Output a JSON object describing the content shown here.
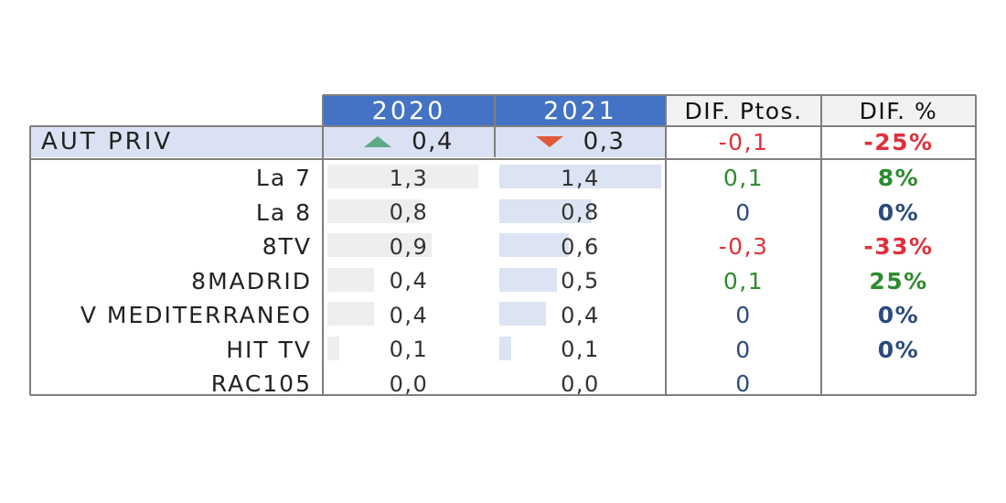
{
  "table": {
    "header": {
      "col2020": "2020",
      "col2021": "2021",
      "dif_pts": "DIF. Ptos.",
      "dif_pct": "DIF. %"
    },
    "total": {
      "label": "AUT PRIV",
      "v2020": "0,4",
      "v2021": "0,3",
      "dif_pts": "-0,1",
      "dif_pct": "-25%",
      "icon2020": "triangle-up-icon",
      "icon2021": "triangle-down-icon"
    },
    "rows": [
      {
        "label": "La 7",
        "v2020": "1,3",
        "v2021": "1,4",
        "dif_pts": "0,1",
        "dif_pct": "8%"
      },
      {
        "label": "La 8",
        "v2020": "0,8",
        "v2021": "0,8",
        "dif_pts": "0",
        "dif_pct": "0%"
      },
      {
        "label": "8TV",
        "v2020": "0,9",
        "v2021": "0,6",
        "dif_pts": "-0,3",
        "dif_pct": "-33%"
      },
      {
        "label": "8MADRID",
        "v2020": "0,4",
        "v2021": "0,5",
        "dif_pts": "0,1",
        "dif_pct": "25%"
      },
      {
        "label": "V MEDITERRANEO",
        "v2020": "0,4",
        "v2021": "0,4",
        "dif_pts": "0",
        "dif_pct": "0%"
      },
      {
        "label": "HIT TV",
        "v2020": "0,1",
        "v2021": "0,1",
        "dif_pts": "0",
        "dif_pct": "0%"
      },
      {
        "label": "RAC105",
        "v2020": "0,0",
        "v2021": "0,0",
        "dif_pts": "0",
        "dif_pct": ""
      }
    ]
  },
  "chart_data": {
    "type": "table",
    "columns": [
      "2020",
      "2021",
      "DIF. Ptos.",
      "DIF. %"
    ],
    "total": {
      "label": "AUT PRIV",
      "values": [
        0.4,
        0.3,
        -0.1,
        -25
      ]
    },
    "categories": [
      "La 7",
      "La 8",
      "8TV",
      "8MADRID",
      "V MEDITERRANEO",
      "HIT TV",
      "RAC105"
    ],
    "series": [
      {
        "name": "2020",
        "values": [
          1.3,
          0.8,
          0.9,
          0.4,
          0.4,
          0.1,
          0.0
        ]
      },
      {
        "name": "2021",
        "values": [
          1.4,
          0.8,
          0.6,
          0.5,
          0.4,
          0.1,
          0.0
        ]
      },
      {
        "name": "DIF. Ptos.",
        "values": [
          0.1,
          0,
          -0.3,
          0.1,
          0,
          0,
          0
        ]
      },
      {
        "name": "DIF. %",
        "values": [
          8,
          0,
          -33,
          25,
          0,
          0,
          null
        ]
      }
    ],
    "bar_scale_max": 1.4
  },
  "colors": {
    "header_blue": "#4472c4",
    "total_row_bg": "#dae1f2",
    "positive": "#2e8b2e",
    "negative": "#e0303a",
    "zero": "#2c4a7c",
    "up_triangle": "#5ea98a",
    "down_triangle": "#e05a3a"
  }
}
